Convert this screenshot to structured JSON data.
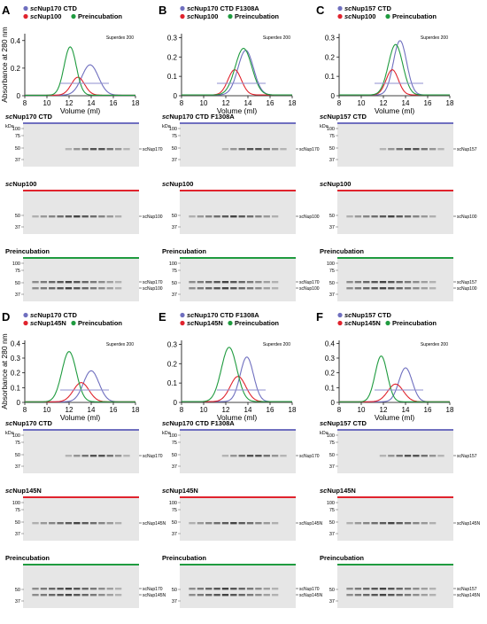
{
  "colors": {
    "nup_a": "#6f6fbf",
    "nup100": "#e0232d",
    "preincubation": "#1f9b3f",
    "gel_bg": "#e6e6e6",
    "band": "#3a3a3a"
  },
  "x_axis_label": "Volume (ml)",
  "y_axis_label": "Absorbance at 280 nm",
  "column_label": "Superdex 200",
  "kda_label": "kDa",
  "x_ticks": [
    "8",
    "10",
    "12",
    "14",
    "16",
    "18"
  ],
  "panels": [
    {
      "letter": "A",
      "legend": [
        {
          "prefix": "sc",
          "rest": "Nup170 CTD",
          "color_key": "nup_a"
        },
        {
          "prefix": "sc",
          "rest": "Nup100",
          "color_key": "nup100"
        },
        {
          "prefix": "",
          "rest": "Preincubation",
          "color_key": "preincubation"
        }
      ],
      "y_ticks": [
        "0.4",
        "0.2",
        "0"
      ],
      "gels": [
        {
          "title_prefix": "sc",
          "title_rest": "Nup170 CTD",
          "mw": [
            "100",
            "75",
            "50",
            "37"
          ],
          "bands": [
            "scNup170"
          ]
        },
        {
          "title_prefix": "sc",
          "title_rest": "Nup100",
          "mw": [
            "50",
            "37"
          ],
          "bands": [
            "scNup100"
          ]
        },
        {
          "title_prefix": "",
          "title_rest": "Preincubation",
          "mw": [
            "100",
            "75",
            "50",
            "37"
          ],
          "bands": [
            "scNup170",
            "scNup100"
          ]
        }
      ]
    },
    {
      "letter": "B",
      "legend": [
        {
          "prefix": "sc",
          "rest": "Nup170 CTD F1308A",
          "color_key": "nup_a"
        },
        {
          "prefix": "sc",
          "rest": "Nup100",
          "color_key": "nup100"
        },
        {
          "prefix": "",
          "rest": "Preincubation",
          "color_key": "preincubation"
        }
      ],
      "y_ticks": [
        "0.3",
        "0.2",
        "0.1",
        "0"
      ],
      "gels": [
        {
          "title_prefix": "sc",
          "title_rest": "Nup170 CTD F1308A",
          "mw": [
            "100",
            "75",
            "50",
            "37"
          ],
          "bands": [
            "scNup170"
          ]
        },
        {
          "title_prefix": "sc",
          "title_rest": "Nup100",
          "mw": [
            "50",
            "37"
          ],
          "bands": [
            "scNup100"
          ]
        },
        {
          "title_prefix": "",
          "title_rest": "Preincubation",
          "mw": [
            "100",
            "75",
            "50",
            "37"
          ],
          "bands": [
            "scNup170",
            "scNup100"
          ]
        }
      ]
    },
    {
      "letter": "C",
      "legend": [
        {
          "prefix": "sc",
          "rest": "Nup157 CTD",
          "color_key": "nup_a"
        },
        {
          "prefix": "sc",
          "rest": "Nup100",
          "color_key": "nup100"
        },
        {
          "prefix": "",
          "rest": "Preincubation",
          "color_key": "preincubation"
        }
      ],
      "y_ticks": [
        "0.3",
        "0.2",
        "0.1",
        "0"
      ],
      "gels": [
        {
          "title_prefix": "sc",
          "title_rest": "Nup157 CTD",
          "mw": [
            "100",
            "75",
            "50",
            "37"
          ],
          "bands": [
            "scNup157"
          ]
        },
        {
          "title_prefix": "sc",
          "title_rest": "Nup100",
          "mw": [
            "50",
            "37"
          ],
          "bands": [
            "scNup100"
          ]
        },
        {
          "title_prefix": "",
          "title_rest": "Preincubation",
          "mw": [
            "100",
            "75",
            "50",
            "37"
          ],
          "bands": [
            "scNup157",
            "scNup100"
          ]
        }
      ]
    },
    {
      "letter": "D",
      "legend": [
        {
          "prefix": "sc",
          "rest": "Nup170 CTD",
          "color_key": "nup_a"
        },
        {
          "prefix": "sc",
          "rest": "Nup145N",
          "color_key": "nup100"
        },
        {
          "prefix": "",
          "rest": "Preincubation",
          "color_key": "preincubation"
        }
      ],
      "y_ticks": [
        "0.4",
        "0.3",
        "0.2",
        "0.1",
        "0"
      ],
      "gels": [
        {
          "title_prefix": "sc",
          "title_rest": "Nup170 CTD",
          "mw": [
            "100",
            "75",
            "50",
            "37"
          ],
          "bands": [
            "scNup170"
          ]
        },
        {
          "title_prefix": "sc",
          "title_rest": "Nup145N",
          "mw": [
            "100",
            "75",
            "50",
            "37"
          ],
          "bands": [
            "scNup145N"
          ]
        },
        {
          "title_prefix": "",
          "title_rest": "Preincubation",
          "mw": [
            "50",
            "37"
          ],
          "bands": [
            "scNup170",
            "scNup145N"
          ]
        }
      ]
    },
    {
      "letter": "E",
      "legend": [
        {
          "prefix": "sc",
          "rest": "Nup170 CTD F1308A",
          "color_key": "nup_a"
        },
        {
          "prefix": "sc",
          "rest": "Nup145N",
          "color_key": "nup100"
        },
        {
          "prefix": "",
          "rest": "Preincubation",
          "color_key": "preincubation"
        }
      ],
      "y_ticks": [
        "0.3",
        "0.2",
        "0.1",
        "0"
      ],
      "gels": [
        {
          "title_prefix": "sc",
          "title_rest": "Nup170 CTD F1308A",
          "mw": [
            "100",
            "75",
            "50",
            "37"
          ],
          "bands": [
            "scNup170"
          ]
        },
        {
          "title_prefix": "sc",
          "title_rest": "Nup145N",
          "mw": [
            "100",
            "75",
            "50",
            "37"
          ],
          "bands": [
            "scNup145N"
          ]
        },
        {
          "title_prefix": "",
          "title_rest": "Preincubation",
          "mw": [
            "50",
            "37"
          ],
          "bands": [
            "scNup170",
            "scNup145N"
          ]
        }
      ]
    },
    {
      "letter": "F",
      "legend": [
        {
          "prefix": "sc",
          "rest": "Nup157 CTD",
          "color_key": "nup_a"
        },
        {
          "prefix": "sc",
          "rest": "Nup145N",
          "color_key": "nup100"
        },
        {
          "prefix": "",
          "rest": "Preincubation",
          "color_key": "preincubation"
        }
      ],
      "y_ticks": [
        "0.4",
        "0.3",
        "0.2",
        "0.1",
        "0"
      ],
      "gels": [
        {
          "title_prefix": "sc",
          "title_rest": "Nup157 CTD",
          "mw": [
            "100",
            "75",
            "50",
            "37"
          ],
          "bands": [
            "scNup157"
          ]
        },
        {
          "title_prefix": "sc",
          "title_rest": "Nup145N",
          "mw": [
            "100",
            "75",
            "50",
            "37"
          ],
          "bands": [
            "scNup145N"
          ]
        },
        {
          "title_prefix": "",
          "title_rest": "Preincubation",
          "mw": [
            "50",
            "37"
          ],
          "bands": [
            "scNup157",
            "scNup145N"
          ]
        }
      ]
    }
  ],
  "chart_data": [
    {
      "type": "line",
      "panel": "A",
      "xlabel": "Volume (ml)",
      "ylabel": "Absorbance at 280 nm",
      "xlim": [
        8,
        18
      ],
      "ylim": [
        0,
        0.45
      ],
      "series": [
        {
          "name": "scNup170 CTD",
          "color_key": "nup_a",
          "peak_x": 13.9,
          "peak_y": 0.22,
          "width": 0.75
        },
        {
          "name": "scNup100",
          "color_key": "nup100",
          "peak_x": 12.8,
          "peak_y": 0.13,
          "width": 0.6
        },
        {
          "name": "Preincubation",
          "color_key": "preincubation",
          "peak_x": 12.1,
          "peak_y": 0.35,
          "width": 0.55
        }
      ]
    },
    {
      "type": "line",
      "panel": "B",
      "xlabel": "Volume (ml)",
      "ylabel": "",
      "xlim": [
        8,
        18
      ],
      "ylim": [
        0,
        0.32
      ],
      "series": [
        {
          "name": "scNup170 CTD F1308A",
          "color_key": "nup_a",
          "peak_x": 13.8,
          "peak_y": 0.23,
          "width": 0.7
        },
        {
          "name": "scNup100",
          "color_key": "nup100",
          "peak_x": 12.8,
          "peak_y": 0.13,
          "width": 0.6
        },
        {
          "name": "Preincubation",
          "color_key": "preincubation",
          "peak_x": 13.6,
          "peak_y": 0.24,
          "width": 0.75
        }
      ]
    },
    {
      "type": "line",
      "panel": "C",
      "xlabel": "Volume (ml)",
      "ylabel": "",
      "xlim": [
        8,
        18
      ],
      "ylim": [
        0,
        0.32
      ],
      "series": [
        {
          "name": "scNup157 CTD",
          "color_key": "nup_a",
          "peak_x": 13.5,
          "peak_y": 0.28,
          "width": 0.6
        },
        {
          "name": "scNup100",
          "color_key": "nup100",
          "peak_x": 12.8,
          "peak_y": 0.13,
          "width": 0.55
        },
        {
          "name": "Preincubation",
          "color_key": "preincubation",
          "peak_x": 13.1,
          "peak_y": 0.26,
          "width": 0.65
        }
      ]
    },
    {
      "type": "line",
      "panel": "D",
      "xlabel": "Volume (ml)",
      "ylabel": "Absorbance at 280 nm",
      "xlim": [
        8,
        18
      ],
      "ylim": [
        0,
        0.42
      ],
      "series": [
        {
          "name": "scNup170 CTD",
          "color_key": "nup_a",
          "peak_x": 14.0,
          "peak_y": 0.21,
          "width": 0.7
        },
        {
          "name": "scNup145N",
          "color_key": "nup100",
          "peak_x": 13.1,
          "peak_y": 0.13,
          "width": 0.7
        },
        {
          "name": "Preincubation",
          "color_key": "preincubation",
          "peak_x": 12.0,
          "peak_y": 0.34,
          "width": 0.65
        }
      ]
    },
    {
      "type": "line",
      "panel": "E",
      "xlabel": "Volume (ml)",
      "ylabel": "",
      "xlim": [
        8,
        18
      ],
      "ylim": [
        0,
        0.32
      ],
      "series": [
        {
          "name": "scNup170 CTD F1308A",
          "color_key": "nup_a",
          "peak_x": 13.9,
          "peak_y": 0.23,
          "width": 0.6
        },
        {
          "name": "scNup145N",
          "color_key": "nup100",
          "peak_x": 13.1,
          "peak_y": 0.13,
          "width": 0.7
        },
        {
          "name": "Preincubation",
          "color_key": "preincubation",
          "peak_x": 12.3,
          "peak_y": 0.28,
          "width": 0.7
        }
      ]
    },
    {
      "type": "line",
      "panel": "F",
      "xlabel": "Volume (ml)",
      "ylabel": "",
      "xlim": [
        8,
        18
      ],
      "ylim": [
        0,
        0.42
      ],
      "series": [
        {
          "name": "scNup157 CTD",
          "color_key": "nup_a",
          "peak_x": 14.0,
          "peak_y": 0.23,
          "width": 0.6
        },
        {
          "name": "scNup145N",
          "color_key": "nup100",
          "peak_x": 13.1,
          "peak_y": 0.12,
          "width": 0.7
        },
        {
          "name": "Preincubation",
          "color_key": "preincubation",
          "peak_x": 11.8,
          "peak_y": 0.31,
          "width": 0.55
        }
      ]
    }
  ]
}
